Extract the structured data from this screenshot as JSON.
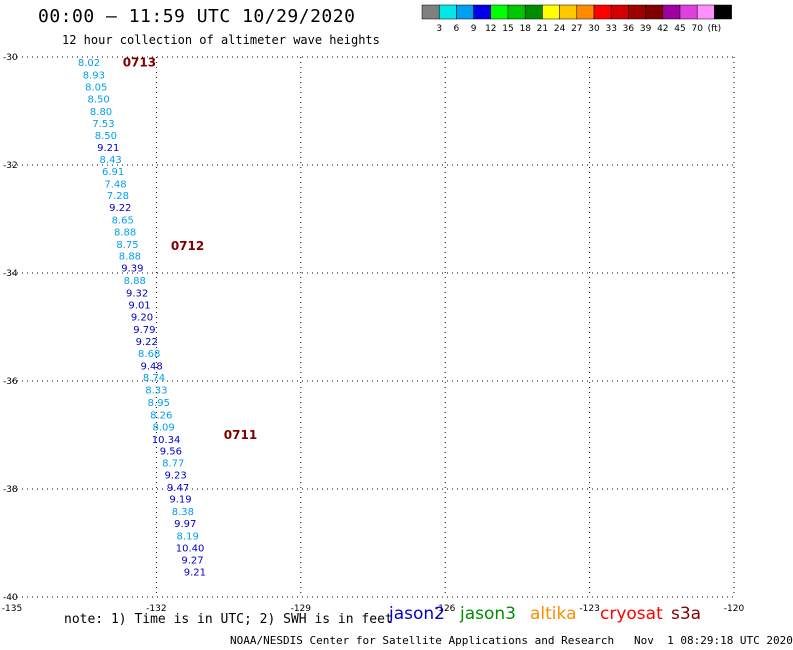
{
  "header": {
    "title": "00:00 – 11:59 UTC 10/29/2020",
    "subtitle": "12 hour collection of altimeter wave heights"
  },
  "legend": {
    "colors": [
      "#808080",
      "#00e8e8",
      "#00a0f0",
      "#0000e8",
      "#00ff00",
      "#00c800",
      "#008c00",
      "#ffff00",
      "#ffc800",
      "#ff8c00",
      "#ff0000",
      "#d20000",
      "#a00000",
      "#800000",
      "#a000a0",
      "#e040e0",
      "#ff90ff",
      "#000000"
    ],
    "labels": [
      "3",
      "6",
      "9",
      "12",
      "15",
      "18",
      "21",
      "24",
      "27",
      "30",
      "33",
      "36",
      "39",
      "42",
      "45",
      "70",
      "(ft)"
    ]
  },
  "satellites": [
    {
      "name": "jason2",
      "color": "#0000c8"
    },
    {
      "name": "jason3",
      "color": "#008c00"
    },
    {
      "name": "altika",
      "color": "#ff8c00"
    },
    {
      "name": "cryosat",
      "color": "#ff0000"
    },
    {
      "name": "s3a",
      "color": "#800000"
    }
  ],
  "note": "note: 1) Time is in UTC; 2) SWH is in feet",
  "footer": "NOAA/NESDIS Center for Satellite Applications and Research   Nov  1 08:29:18 UTC 2020",
  "chart_data": {
    "type": "scatter",
    "title": "00:00 – 11:59 UTC 10/29/2020",
    "subtitle": "12 hour collection of altimeter wave heights",
    "xlim": [
      -135,
      -120
    ],
    "ylim": [
      -40,
      -30
    ],
    "x_ticks": [
      -135,
      -132,
      -129,
      -126,
      -123,
      -120
    ],
    "y_ticks": [
      -30,
      -32,
      -34,
      -36,
      -38,
      -40
    ],
    "x_tick_labels": [
      "-135",
      "-132",
      "-129",
      "-126",
      "-123",
      "-120"
    ],
    "y_tick_labels": [
      "-30",
      "-32",
      "-34",
      "-36",
      "-38",
      "-40"
    ],
    "grid": true,
    "units": "ft",
    "time_labels": [
      {
        "text": "0713",
        "lon": -132.7,
        "lat": -30.1,
        "color": "#800000"
      },
      {
        "text": "0712",
        "lon": -131.7,
        "lat": -33.5,
        "color": "#800000"
      },
      {
        "text": "0711",
        "lon": -130.6,
        "lat": -37.0,
        "color": "#800000"
      }
    ],
    "points": [
      {
        "lon": -133.4,
        "lat": -30.09,
        "swh": "8.02",
        "color": "#00a0f0"
      },
      {
        "lon": -133.3,
        "lat": -30.32,
        "swh": "8.93",
        "color": "#00a0f0"
      },
      {
        "lon": -133.25,
        "lat": -30.55,
        "swh": "8.05",
        "color": "#00a0f0"
      },
      {
        "lon": -133.2,
        "lat": -30.77,
        "swh": "8.50",
        "color": "#00a0f0"
      },
      {
        "lon": -133.15,
        "lat": -31.0,
        "swh": "8.80",
        "color": "#00a0f0"
      },
      {
        "lon": -133.1,
        "lat": -31.22,
        "swh": "7.53",
        "color": "#00a0f0"
      },
      {
        "lon": -133.05,
        "lat": -31.44,
        "swh": "8.50",
        "color": "#00a0f0"
      },
      {
        "lon": -133.0,
        "lat": -31.67,
        "swh": "9.21",
        "color": "#0000c8"
      },
      {
        "lon": -132.95,
        "lat": -31.89,
        "swh": "8.43",
        "color": "#00a0f0"
      },
      {
        "lon": -132.9,
        "lat": -32.11,
        "swh": "6.91",
        "color": "#00a0f0"
      },
      {
        "lon": -132.85,
        "lat": -32.34,
        "swh": "7.48",
        "color": "#00a0f0"
      },
      {
        "lon": -132.8,
        "lat": -32.56,
        "swh": "7.28",
        "color": "#00a0f0"
      },
      {
        "lon": -132.75,
        "lat": -32.78,
        "swh": "9.22",
        "color": "#0000c8"
      },
      {
        "lon": -132.7,
        "lat": -33.01,
        "swh": "8.65",
        "color": "#00a0f0"
      },
      {
        "lon": -132.65,
        "lat": -33.23,
        "swh": "8.88",
        "color": "#00a0f0"
      },
      {
        "lon": -132.6,
        "lat": -33.46,
        "swh": "8.75",
        "color": "#00a0f0"
      },
      {
        "lon": -132.55,
        "lat": -33.68,
        "swh": "8.88",
        "color": "#00a0f0"
      },
      {
        "lon": -132.5,
        "lat": -33.9,
        "swh": "9.39",
        "color": "#0000c8"
      },
      {
        "lon": -132.45,
        "lat": -34.13,
        "swh": "8.88",
        "color": "#00a0f0"
      },
      {
        "lon": -132.4,
        "lat": -34.36,
        "swh": "9.32",
        "color": "#0000c8"
      },
      {
        "lon": -132.35,
        "lat": -34.58,
        "swh": "9.01",
        "color": "#0000c8"
      },
      {
        "lon": -132.3,
        "lat": -34.81,
        "swh": "9.20",
        "color": "#0000c8"
      },
      {
        "lon": -132.25,
        "lat": -35.04,
        "swh": "9.79",
        "color": "#0000c8"
      },
      {
        "lon": -132.2,
        "lat": -35.26,
        "swh": "9.22",
        "color": "#0000c8"
      },
      {
        "lon": -132.15,
        "lat": -35.48,
        "swh": "8.68",
        "color": "#00a0f0"
      },
      {
        "lon": -132.1,
        "lat": -35.71,
        "swh": "9.48",
        "color": "#0000c8"
      },
      {
        "lon": -132.05,
        "lat": -35.93,
        "swh": "8.74",
        "color": "#00a0f0"
      },
      {
        "lon": -132.0,
        "lat": -36.16,
        "swh": "8.33",
        "color": "#00a0f0"
      },
      {
        "lon": -131.95,
        "lat": -36.39,
        "swh": "8.95",
        "color": "#00a0f0"
      },
      {
        "lon": -131.9,
        "lat": -36.62,
        "swh": "8.26",
        "color": "#00a0f0"
      },
      {
        "lon": -131.85,
        "lat": -36.84,
        "swh": "8.09",
        "color": "#00a0f0"
      },
      {
        "lon": -131.8,
        "lat": -37.07,
        "swh": "10.34",
        "color": "#0000c8"
      },
      {
        "lon": -131.7,
        "lat": -37.29,
        "swh": "9.56",
        "color": "#0000c8"
      },
      {
        "lon": -131.65,
        "lat": -37.51,
        "swh": "8.77",
        "color": "#00a0f0"
      },
      {
        "lon": -131.6,
        "lat": -37.73,
        "swh": "9.23",
        "color": "#0000c8"
      },
      {
        "lon": -131.55,
        "lat": -37.96,
        "swh": "9.47",
        "color": "#0000c8"
      },
      {
        "lon": -131.5,
        "lat": -38.18,
        "swh": "9.19",
        "color": "#0000c8"
      },
      {
        "lon": -131.45,
        "lat": -38.41,
        "swh": "8.38",
        "color": "#00a0f0"
      },
      {
        "lon": -131.4,
        "lat": -38.63,
        "swh": "9.97",
        "color": "#0000c8"
      },
      {
        "lon": -131.35,
        "lat": -38.86,
        "swh": "8.19",
        "color": "#00a0f0"
      },
      {
        "lon": -131.3,
        "lat": -39.08,
        "swh": "10.40",
        "color": "#0000c8"
      },
      {
        "lon": -131.25,
        "lat": -39.31,
        "swh": "9.27",
        "color": "#0000c8"
      },
      {
        "lon": -131.2,
        "lat": -39.53,
        "swh": "9.21",
        "color": "#0000c8"
      }
    ]
  }
}
